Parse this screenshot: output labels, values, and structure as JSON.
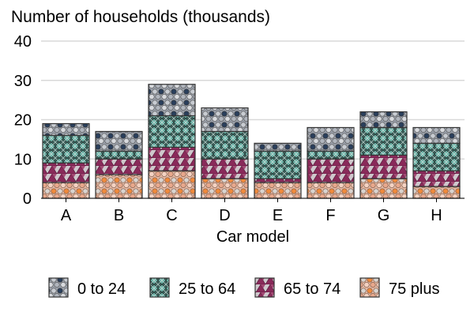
{
  "chart_data": {
    "type": "bar",
    "stacked": true,
    "title": "Number of households (thousands)",
    "xlabel": "Car model",
    "ylabel": "",
    "ylim": [
      0,
      40
    ],
    "yticks": [
      0,
      10,
      20,
      30,
      40
    ],
    "grid": "horizontal",
    "legend_position": "bottom",
    "categories": [
      "A",
      "B",
      "C",
      "D",
      "E",
      "F",
      "G",
      "H"
    ],
    "series": [
      {
        "name": "75 plus",
        "values": [
          4,
          6,
          7,
          5,
          4,
          4,
          5,
          3
        ],
        "color": "#e8a88c"
      },
      {
        "name": "65 to 74",
        "values": [
          5,
          4,
          6,
          5,
          1,
          6,
          6,
          4
        ],
        "color": "#8a2a5a"
      },
      {
        "name": "25 to 64",
        "values": [
          7,
          2,
          8,
          7,
          7,
          2,
          7,
          7
        ],
        "color": "#4a9a90"
      },
      {
        "name": "0 to 24",
        "values": [
          3,
          5,
          8,
          6,
          2,
          6,
          4,
          4
        ],
        "color": "#2a3f5c"
      }
    ],
    "legend_order": [
      "0 to 24",
      "25 to 64",
      "65 to 74",
      "75 plus"
    ]
  }
}
